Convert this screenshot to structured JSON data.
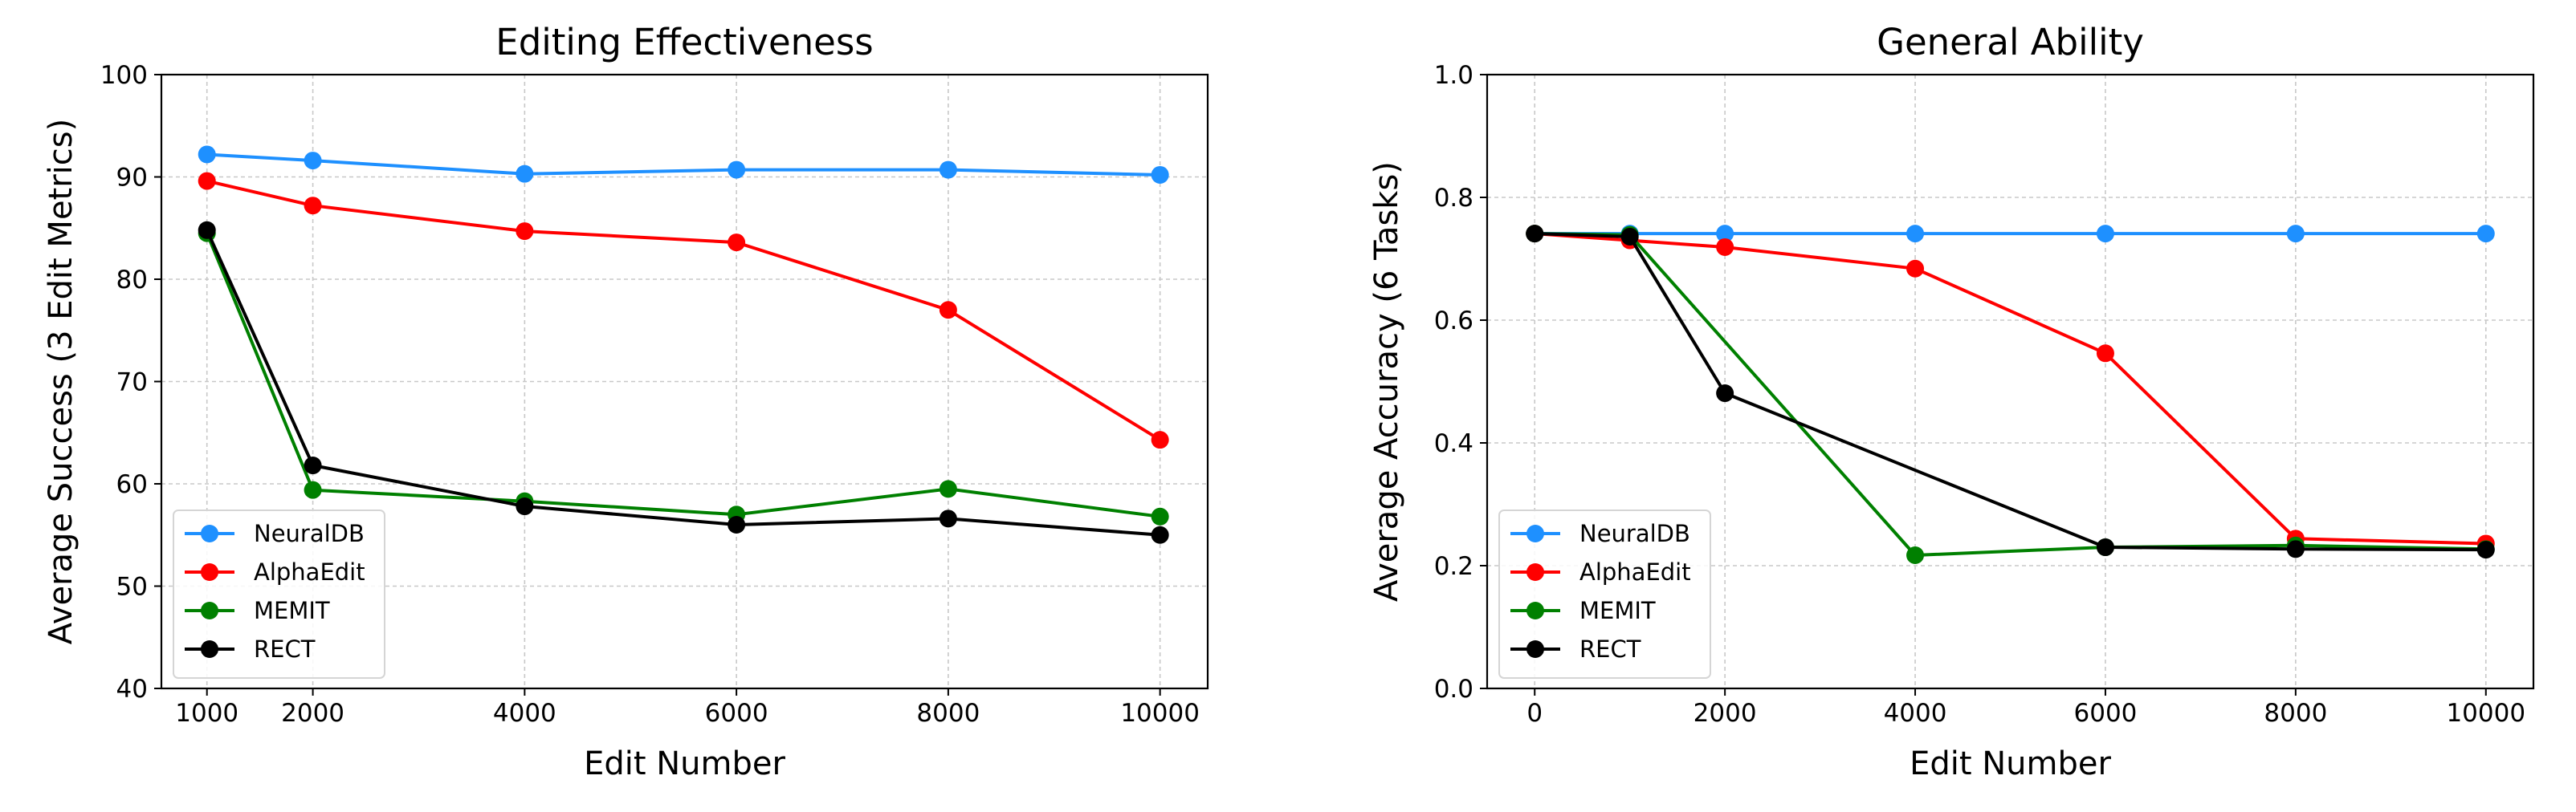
{
  "chart_data": [
    {
      "type": "line",
      "title": "Editing Effectiveness",
      "xlabel": "Edit Number",
      "ylabel": "Average Success (3 Edit Metrics)",
      "xlim": [
        570,
        10450
      ],
      "ylim": [
        40,
        100
      ],
      "x_ticks": [
        1000,
        2000,
        4000,
        6000,
        8000,
        10000
      ],
      "y_ticks": [
        40,
        50,
        60,
        70,
        80,
        90,
        100
      ],
      "grid": true,
      "legend_position": "lower-left",
      "series": [
        {
          "name": "NeuralDB",
          "color": "#1e90ff",
          "x": [
            1000,
            2000,
            4000,
            6000,
            8000,
            10000
          ],
          "y": [
            92.2,
            91.6,
            90.3,
            90.7,
            90.7,
            90.2
          ]
        },
        {
          "name": "AlphaEdit",
          "color": "#ff0000",
          "x": [
            1000,
            2000,
            4000,
            6000,
            8000,
            10000
          ],
          "y": [
            89.6,
            87.2,
            84.7,
            83.6,
            77.0,
            64.3
          ]
        },
        {
          "name": "MEMIT",
          "color": "#008000",
          "x": [
            1000,
            2000,
            4000,
            6000,
            8000,
            10000
          ],
          "y": [
            84.5,
            59.4,
            58.3,
            57.0,
            59.5,
            56.8
          ]
        },
        {
          "name": "RECT",
          "color": "#000000",
          "x": [
            1000,
            2000,
            4000,
            6000,
            8000,
            10000
          ],
          "y": [
            84.8,
            61.8,
            57.8,
            56.0,
            56.6,
            55.0
          ]
        }
      ]
    },
    {
      "type": "line",
      "title": "General Ability",
      "xlabel": "Edit Number",
      "ylabel": "Average Accuracy (6 Tasks)",
      "xlim": [
        -500,
        10500
      ],
      "ylim": [
        0.0,
        1.0
      ],
      "x_ticks": [
        0,
        2000,
        4000,
        6000,
        8000,
        10000
      ],
      "y_ticks": [
        0.0,
        0.2,
        0.4,
        0.6,
        0.8,
        1.0
      ],
      "y_tick_labels": [
        "0.0",
        "0.2",
        "0.4",
        "0.6",
        "0.8",
        "1.0"
      ],
      "grid": true,
      "legend_position": "lower-left",
      "series": [
        {
          "name": "NeuralDB",
          "color": "#1e90ff",
          "x": [
            0,
            1000,
            2000,
            4000,
            6000,
            8000,
            10000
          ],
          "y": [
            0.741,
            0.741,
            0.741,
            0.741,
            0.741,
            0.741,
            0.741
          ]
        },
        {
          "name": "AlphaEdit",
          "color": "#ff0000",
          "x": [
            0,
            1000,
            2000,
            4000,
            6000,
            8000,
            10000
          ],
          "y": [
            0.741,
            0.73,
            0.719,
            0.684,
            0.546,
            0.244,
            0.236
          ]
        },
        {
          "name": "MEMIT",
          "color": "#008000",
          "x": [
            0,
            1000,
            4000,
            6000,
            8000,
            10000
          ],
          "y": [
            0.741,
            0.739,
            0.217,
            0.23,
            0.233,
            0.227
          ]
        },
        {
          "name": "RECT",
          "color": "#000000",
          "x": [
            0,
            1000,
            2000,
            6000,
            8000,
            10000
          ],
          "y": [
            0.741,
            0.736,
            0.481,
            0.23,
            0.227,
            0.226
          ]
        }
      ]
    }
  ]
}
